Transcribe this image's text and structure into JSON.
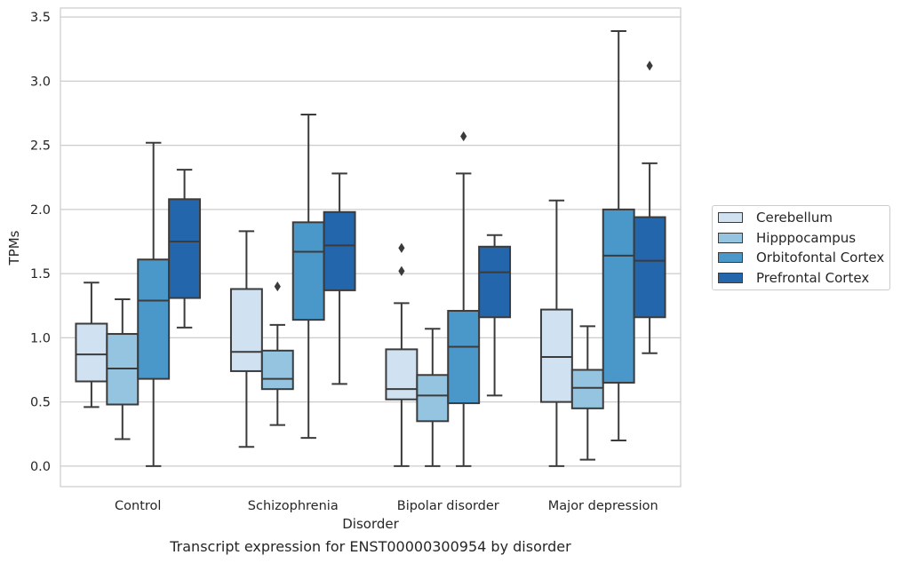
{
  "chart_data": {
    "type": "box",
    "xlabel": "Disorder",
    "ylabel": "TPMs",
    "ylim": [
      -0.16,
      3.57
    ],
    "yticks": [
      "0.0",
      "0.5",
      "1.0",
      "1.5",
      "2.0",
      "2.5",
      "3.0",
      "3.5"
    ],
    "grid": "horizontal",
    "legend_position": "right",
    "categories": [
      "Control",
      "Schizophrenia",
      "Bipolar disorder",
      "Major depression"
    ],
    "series": [
      {
        "name": "Cerebellum",
        "color": "#d0e1f2",
        "boxes": [
          {
            "whislo": 0.46,
            "q1": 0.66,
            "med": 0.87,
            "q3": 1.11,
            "whishi": 1.43,
            "fliers": []
          },
          {
            "whislo": 0.15,
            "q1": 0.74,
            "med": 0.89,
            "q3": 1.38,
            "whishi": 1.83,
            "fliers": []
          },
          {
            "whislo": 0.0,
            "q1": 0.52,
            "med": 0.6,
            "q3": 0.91,
            "whishi": 1.27,
            "fliers": [
              1.52,
              1.7
            ]
          },
          {
            "whislo": 0.0,
            "q1": 0.5,
            "med": 0.85,
            "q3": 1.22,
            "whishi": 2.07,
            "fliers": []
          }
        ]
      },
      {
        "name": "Hipppocampus",
        "color": "#94c4df",
        "boxes": [
          {
            "whislo": 0.21,
            "q1": 0.48,
            "med": 0.76,
            "q3": 1.03,
            "whishi": 1.3,
            "fliers": []
          },
          {
            "whislo": 0.32,
            "q1": 0.6,
            "med": 0.68,
            "q3": 0.9,
            "whishi": 1.1,
            "fliers": [
              1.4
            ]
          },
          {
            "whislo": 0.0,
            "q1": 0.35,
            "med": 0.55,
            "q3": 0.71,
            "whishi": 1.07,
            "fliers": []
          },
          {
            "whislo": 0.05,
            "q1": 0.45,
            "med": 0.61,
            "q3": 0.75,
            "whishi": 1.09,
            "fliers": []
          }
        ]
      },
      {
        "name": "Orbitofontal Cortex",
        "color": "#4a98c9",
        "boxes": [
          {
            "whislo": 0.0,
            "q1": 0.68,
            "med": 1.29,
            "q3": 1.61,
            "whishi": 2.52,
            "fliers": []
          },
          {
            "whislo": 0.22,
            "q1": 1.14,
            "med": 1.67,
            "q3": 1.9,
            "whishi": 2.74,
            "fliers": []
          },
          {
            "whislo": 0.0,
            "q1": 0.49,
            "med": 0.93,
            "q3": 1.21,
            "whishi": 2.28,
            "fliers": [
              2.57
            ]
          },
          {
            "whislo": 0.2,
            "q1": 0.65,
            "med": 1.64,
            "q3": 2.0,
            "whishi": 3.39,
            "fliers": []
          }
        ]
      },
      {
        "name": "Prefrontal Cortex",
        "color": "#2366ab",
        "boxes": [
          {
            "whislo": 1.08,
            "q1": 1.31,
            "med": 1.75,
            "q3": 2.08,
            "whishi": 2.31,
            "fliers": []
          },
          {
            "whislo": 0.64,
            "q1": 1.37,
            "med": 1.72,
            "q3": 1.98,
            "whishi": 2.28,
            "fliers": []
          },
          {
            "whislo": 0.55,
            "q1": 1.16,
            "med": 1.51,
            "q3": 1.71,
            "whishi": 1.8,
            "fliers": []
          },
          {
            "whislo": 0.88,
            "q1": 1.16,
            "med": 1.6,
            "q3": 1.94,
            "whishi": 2.36,
            "fliers": [
              3.12
            ]
          }
        ]
      }
    ]
  },
  "caption": "Transcript expression for ENST00000300954 by disorder"
}
